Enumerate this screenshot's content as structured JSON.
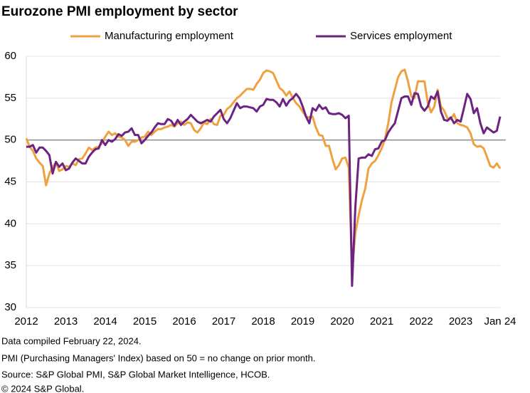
{
  "chart_data": {
    "type": "line",
    "title": "Eurozone PMI employment by sector",
    "categories": [
      "2012",
      null,
      null,
      null,
      null,
      null,
      null,
      null,
      null,
      null,
      null,
      null,
      "2013",
      null,
      null,
      null,
      null,
      null,
      null,
      null,
      null,
      null,
      null,
      null,
      "2014",
      null,
      null,
      null,
      null,
      null,
      null,
      null,
      null,
      null,
      null,
      null,
      "2015",
      null,
      null,
      null,
      null,
      null,
      null,
      null,
      null,
      null,
      null,
      null,
      "2016",
      null,
      null,
      null,
      null,
      null,
      null,
      null,
      null,
      null,
      null,
      null,
      "2017",
      null,
      null,
      null,
      null,
      null,
      null,
      null,
      null,
      null,
      null,
      null,
      "2018",
      null,
      null,
      null,
      null,
      null,
      null,
      null,
      null,
      null,
      null,
      null,
      "2019",
      null,
      null,
      null,
      null,
      null,
      null,
      null,
      null,
      null,
      null,
      null,
      "2020",
      null,
      null,
      null,
      null,
      null,
      null,
      null,
      null,
      null,
      null,
      null,
      "2021",
      null,
      null,
      null,
      null,
      null,
      null,
      null,
      null,
      null,
      null,
      null,
      "2022",
      null,
      null,
      null,
      null,
      null,
      null,
      null,
      null,
      null,
      null,
      null,
      "2023",
      null,
      null,
      null,
      null,
      null,
      null,
      null,
      null,
      null,
      null,
      null,
      "Jan 24"
    ],
    "series": [
      {
        "name": "Manufacturing employment",
        "color": "#f0a13f",
        "values": [
          50.2,
          49.2,
          48.7,
          47.8,
          47.3,
          46.9,
          44.6,
          46.0,
          46.8,
          47.3,
          46.3,
          46.5,
          46.9,
          46.8,
          47.2,
          47.0,
          47.7,
          47.8,
          48.4,
          49.1,
          48.8,
          49.1,
          49.2,
          49.6,
          50.4,
          51.0,
          50.6,
          50.8,
          50.4,
          50.3,
          50.0,
          49.3,
          49.8,
          49.8,
          50.0,
          50.3,
          50.4,
          51.0,
          50.6,
          51.0,
          51.3,
          51.3,
          51.5,
          51.6,
          51.8,
          51.6,
          52.0,
          52.2,
          51.8,
          52.1,
          52.0,
          51.2,
          50.9,
          51.4,
          52.1,
          51.9,
          52.5,
          51.9,
          51.8,
          52.9,
          53.0,
          53.7,
          54.0,
          54.5,
          55.0,
          55.3,
          55.7,
          56.1,
          56.1,
          56.0,
          56.7,
          57.2,
          58.0,
          58.3,
          58.2,
          58.0,
          57.1,
          56.2,
          55.9,
          55.3,
          55.8,
          55.0,
          54.4,
          54.0,
          53.4,
          52.8,
          52.7,
          52.8,
          51.5,
          50.6,
          50.5,
          49.3,
          49.3,
          47.8,
          46.5,
          47.0,
          47.8,
          47.9,
          46.7,
          34.5,
          38.9,
          41.0,
          42.8,
          44.2,
          46.6,
          47.2,
          47.5,
          48.2,
          49.0,
          50.1,
          52.0,
          54.5,
          56.0,
          57.5,
          58.2,
          58.4,
          57.0,
          55.2,
          55.0,
          57.0,
          57.0,
          57.0,
          54.5,
          53.3,
          54.0,
          56.0,
          54.0,
          53.5,
          52.6,
          52.5,
          53.1,
          52.0,
          51.8,
          51.7,
          51.5,
          50.8,
          49.5,
          49.2,
          49.3,
          49.0,
          48.0,
          46.9,
          46.7,
          47.2,
          46.6
        ]
      },
      {
        "name": "Services employment",
        "color": "#6c2382",
        "values": [
          49.2,
          49.2,
          49.4,
          48.5,
          49.1,
          49.1,
          48.7,
          48.2,
          46.0,
          47.4,
          46.8,
          47.2,
          46.4,
          46.6,
          47.3,
          47.8,
          47.5,
          47.2,
          47.2,
          48.0,
          48.5,
          48.9,
          49.0,
          50.0,
          49.4,
          50.0,
          49.8,
          50.1,
          50.7,
          50.5,
          50.9,
          51.0,
          51.4,
          50.6,
          50.6,
          49.6,
          50.0,
          50.5,
          50.9,
          51.5,
          52.0,
          51.9,
          51.9,
          52.5,
          52.3,
          51.7,
          52.4,
          51.8,
          52.2,
          52.5,
          53.0,
          52.6,
          52.2,
          52.0,
          52.2,
          52.4,
          52.2,
          52.8,
          53.2,
          53.6,
          52.5,
          52.0,
          52.6,
          53.5,
          54.4,
          53.8,
          54.0,
          54.0,
          53.9,
          53.8,
          53.4,
          54.0,
          54.2,
          54.9,
          54.8,
          54.8,
          54.5,
          54.0,
          54.9,
          54.1,
          54.7,
          55.0,
          55.5,
          55.0,
          54.0,
          52.8,
          52.0,
          53.8,
          53.5,
          54.2,
          53.7,
          53.9,
          53.2,
          53.1,
          53.1,
          53.2,
          53.0,
          52.6,
          52.9,
          32.6,
          42.0,
          47.8,
          47.9,
          47.9,
          48.3,
          48.1,
          48.9,
          49.0,
          49.8,
          50.0,
          50.9,
          51.5,
          52.0,
          53.5,
          55.0,
          55.2,
          55.2,
          54.2,
          55.6,
          55.5,
          54.0,
          53.5,
          54.0,
          55.2,
          54.9,
          55.8,
          53.4,
          52.4,
          52.3,
          52.7,
          52.0,
          52.4,
          52.2,
          53.8,
          55.5,
          54.9,
          53.2,
          53.8,
          52.0,
          50.8,
          51.5,
          51.2,
          50.9,
          51.1,
          52.8
        ]
      }
    ],
    "ylim": [
      30,
      60
    ],
    "yticks": [
      30,
      35,
      40,
      45,
      50,
      55,
      60
    ],
    "grid": true,
    "reference_line": 50,
    "legend": "top",
    "footnotes": [
      "Data compiled February 22, 2024.",
      "PMI (Purchasing Managers' Index) based on 50 = no change on prior month.",
      "Source: S&P Global PMI, S&P Global Market Intelligence, HCOB.",
      "© 2024 S&P Global."
    ]
  }
}
